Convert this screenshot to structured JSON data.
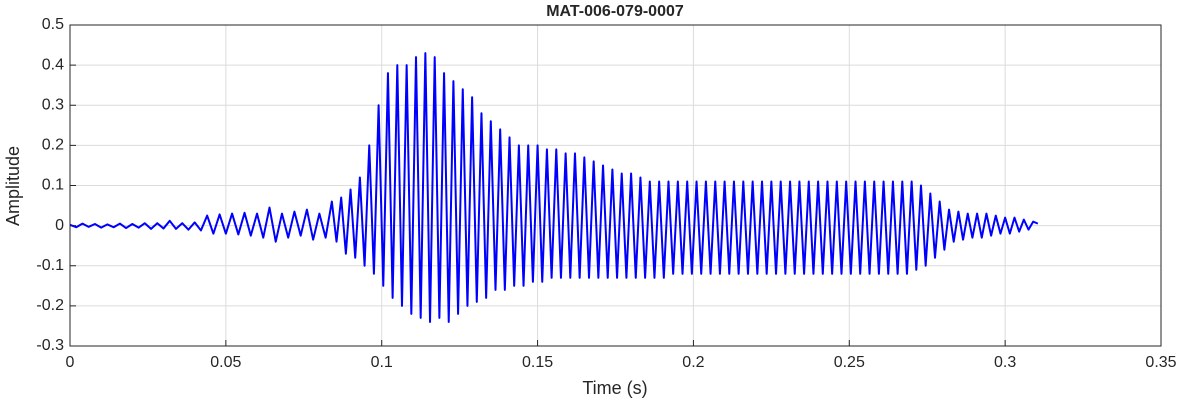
{
  "chart_data": {
    "type": "line",
    "title": "MAT-006-079-0007",
    "x_label": "Time (s)",
    "y_label": "Amplitude",
    "grid": true,
    "xlim": [
      0,
      0.35
    ],
    "xticks": [
      0,
      0.05,
      0.1,
      0.15,
      0.2,
      0.25,
      0.3,
      0.35
    ],
    "ylim": [
      -0.3,
      0.5
    ],
    "yticks": [
      -0.3,
      -0.2,
      -0.1,
      0,
      0.1,
      0.2,
      0.3,
      0.4,
      0.5
    ],
    "series": [
      {
        "name": "signal",
        "color": "#0000ff",
        "x": [
          0,
          0.002,
          0.004,
          0.006,
          0.008,
          0.01,
          0.012,
          0.014,
          0.016,
          0.018,
          0.02,
          0.022,
          0.024,
          0.026,
          0.028,
          0.03,
          0.032,
          0.034,
          0.036,
          0.038,
          0.04,
          0.042,
          0.044,
          0.046,
          0.048,
          0.05,
          0.052,
          0.054,
          0.056,
          0.058,
          0.06,
          0.062,
          0.064,
          0.066,
          0.068,
          0.07,
          0.072,
          0.074,
          0.076,
          0.078,
          0.08,
          0.082,
          0.084,
          0.0855,
          0.087,
          0.0885,
          0.09,
          0.0915,
          0.093,
          0.0945,
          0.096,
          0.0975,
          0.099,
          0.1005,
          0.102,
          0.1035,
          0.105,
          0.1065,
          0.108,
          0.1095,
          0.111,
          0.1125,
          0.114,
          0.1155,
          0.117,
          0.1185,
          0.12,
          0.1215,
          0.123,
          0.1245,
          0.126,
          0.1275,
          0.129,
          0.1305,
          0.132,
          0.1335,
          0.135,
          0.1365,
          0.138,
          0.1395,
          0.141,
          0.1425,
          0.144,
          0.1455,
          0.147,
          0.1485,
          0.15,
          0.1515,
          0.153,
          0.1545,
          0.156,
          0.1575,
          0.159,
          0.1605,
          0.162,
          0.1635,
          0.165,
          0.1665,
          0.168,
          0.1695,
          0.171,
          0.1725,
          0.174,
          0.1755,
          0.177,
          0.1785,
          0.18,
          0.1815,
          0.183,
          0.1845,
          0.186,
          0.1875,
          0.189,
          0.1905,
          0.192,
          0.1935,
          0.195,
          0.1965,
          0.198,
          0.1995,
          0.201,
          0.2025,
          0.204,
          0.2055,
          0.207,
          0.2085,
          0.21,
          0.2115,
          0.213,
          0.2145,
          0.216,
          0.2175,
          0.219,
          0.2205,
          0.222,
          0.2235,
          0.225,
          0.2265,
          0.228,
          0.2295,
          0.231,
          0.2325,
          0.234,
          0.2355,
          0.237,
          0.2385,
          0.24,
          0.2415,
          0.243,
          0.2445,
          0.246,
          0.2475,
          0.249,
          0.2505,
          0.252,
          0.2535,
          0.255,
          0.2565,
          0.258,
          0.2595,
          0.261,
          0.2625,
          0.264,
          0.2655,
          0.267,
          0.2685,
          0.27,
          0.2715,
          0.273,
          0.2745,
          0.276,
          0.2775,
          0.279,
          0.2805,
          0.282,
          0.2835,
          0.285,
          0.2865,
          0.288,
          0.2895,
          0.291,
          0.2925,
          0.294,
          0.2955,
          0.297,
          0.2985,
          0.3,
          0.3015,
          0.303,
          0.3045,
          0.306,
          0.3075,
          0.309,
          0.3105
        ],
        "values": [
          0.002,
          -0.004,
          0.005,
          -0.003,
          0.004,
          -0.005,
          0.003,
          -0.004,
          0.005,
          -0.006,
          0.004,
          -0.005,
          0.006,
          -0.008,
          0.006,
          -0.007,
          0.012,
          -0.008,
          0.006,
          -0.01,
          0.008,
          -0.012,
          0.025,
          -0.02,
          0.028,
          -0.02,
          0.03,
          -0.022,
          0.032,
          -0.025,
          0.03,
          -0.03,
          0.045,
          -0.04,
          0.03,
          -0.03,
          0.035,
          -0.025,
          0.04,
          -0.035,
          0.03,
          -0.03,
          0.06,
          -0.04,
          0.07,
          -0.07,
          0.09,
          -0.08,
          0.12,
          -0.1,
          0.2,
          -0.12,
          0.3,
          -0.15,
          0.38,
          -0.18,
          0.4,
          -0.2,
          0.4,
          -0.22,
          0.42,
          -0.23,
          0.43,
          -0.24,
          0.42,
          -0.23,
          0.38,
          -0.24,
          0.36,
          -0.22,
          0.34,
          -0.2,
          0.32,
          -0.19,
          0.28,
          -0.18,
          0.26,
          -0.16,
          0.24,
          -0.16,
          0.22,
          -0.15,
          0.2,
          -0.15,
          0.2,
          -0.14,
          0.2,
          -0.14,
          0.19,
          -0.13,
          0.19,
          -0.13,
          0.18,
          -0.13,
          0.18,
          -0.13,
          0.17,
          -0.13,
          0.16,
          -0.13,
          0.15,
          -0.13,
          0.14,
          -0.13,
          0.13,
          -0.13,
          0.13,
          -0.13,
          0.12,
          -0.13,
          0.11,
          -0.13,
          0.11,
          -0.13,
          0.11,
          -0.12,
          0.11,
          -0.12,
          0.11,
          -0.12,
          0.11,
          -0.12,
          0.11,
          -0.12,
          0.11,
          -0.12,
          0.11,
          -0.12,
          0.11,
          -0.12,
          0.11,
          -0.12,
          0.11,
          -0.12,
          0.11,
          -0.12,
          0.11,
          -0.12,
          0.11,
          -0.12,
          0.11,
          -0.12,
          0.11,
          -0.12,
          0.11,
          -0.12,
          0.11,
          -0.12,
          0.11,
          -0.12,
          0.11,
          -0.12,
          0.11,
          -0.12,
          0.11,
          -0.12,
          0.11,
          -0.12,
          0.11,
          -0.12,
          0.11,
          -0.12,
          0.11,
          -0.12,
          0.11,
          -0.12,
          0.11,
          -0.11,
          0.1,
          -0.1,
          0.08,
          -0.08,
          0.06,
          -0.06,
          0.04,
          -0.04,
          0.035,
          -0.035,
          0.03,
          -0.03,
          0.03,
          -0.03,
          0.03,
          -0.025,
          0.025,
          -0.02,
          0.02,
          -0.02,
          0.02,
          -0.015,
          0.015,
          -0.01,
          0.01,
          0.005
        ]
      }
    ]
  }
}
